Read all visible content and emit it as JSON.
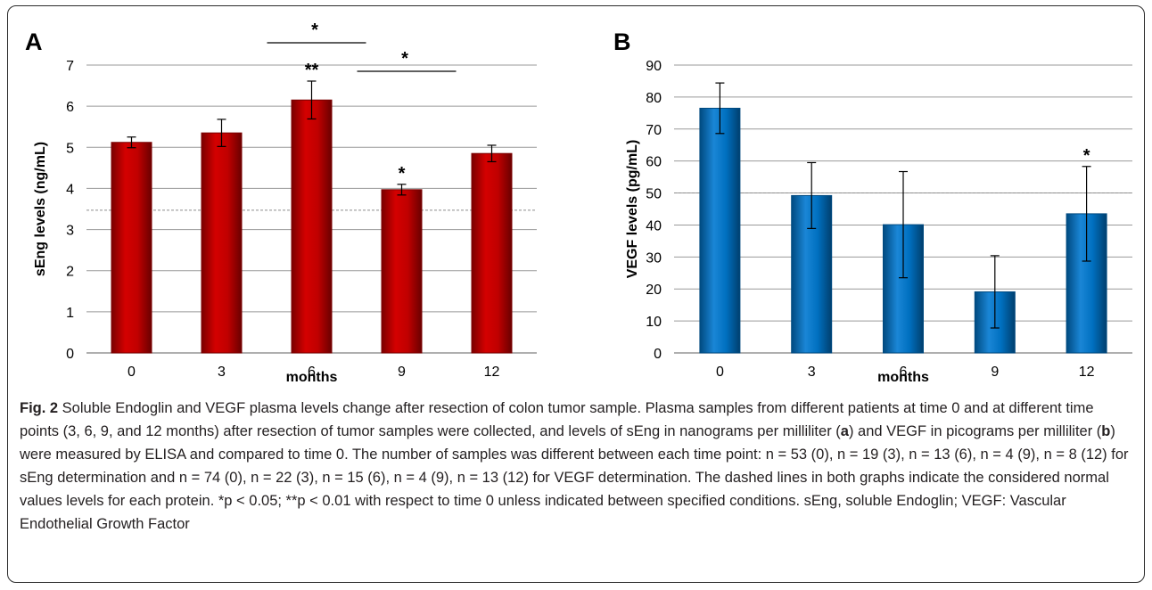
{
  "colors": {
    "red_bar": "#c00000",
    "red_bar_dark": "#7a0000",
    "blue_bar": "#0070c0",
    "blue_bar_dark": "#004a80",
    "grid": "#9a9a9a",
    "normal_line": "#8c8c8c"
  },
  "chart_data": [
    {
      "type": "bar",
      "panel_label": "A",
      "categories": [
        "0",
        "3",
        "6",
        "9",
        "12"
      ],
      "values": [
        5.12,
        5.35,
        6.15,
        3.97,
        4.85
      ],
      "error": [
        0.13,
        0.33,
        0.46,
        0.13,
        0.2
      ],
      "xlabel": "months",
      "ylabel": "sEng levels (ng/mL)",
      "ylim": [
        0,
        7
      ],
      "yticks": [
        "0",
        "1",
        "2",
        "3",
        "4",
        "5",
        "6",
        "7"
      ],
      "grid": true,
      "normal_value": 3.47,
      "bar_annotations": [
        {
          "category": "6",
          "text": "**"
        },
        {
          "category": "9",
          "text": "*"
        }
      ],
      "bracket_annotations": [
        {
          "from": "6",
          "to": "9",
          "text": "*"
        },
        {
          "from": "9",
          "to": "12",
          "text": "*"
        }
      ]
    },
    {
      "type": "bar",
      "panel_label": "B",
      "categories": [
        "0",
        "3",
        "6",
        "9",
        "12"
      ],
      "values": [
        76.5,
        49.2,
        40.1,
        19.1,
        43.5
      ],
      "error": [
        7.9,
        10.3,
        16.6,
        11.3,
        14.8
      ],
      "xlabel": "months",
      "ylabel": "VEGF levels (pg/mL)",
      "ylim": [
        0,
        90
      ],
      "yticks": [
        "0",
        "10",
        "20",
        "30",
        "40",
        "50",
        "60",
        "70",
        "80",
        "90"
      ],
      "grid": true,
      "normal_value": 50,
      "bar_annotations": [
        {
          "category": "12",
          "text": "*"
        }
      ],
      "bracket_annotations": []
    }
  ],
  "caption": {
    "fig_label": "Fig. 2",
    "text_1": " Soluble Endoglin and VEGF plasma levels change after resection of colon tumor sample. Plasma samples from different patients at time 0 and at different time points (3, 6, 9, and 12 months) after resection of tumor samples were collected, and levels of sEng in nanograms per milliliter (",
    "a": "a",
    "text_2": ") and VEGF in picograms per milliliter (",
    "b": "b",
    "text_3": ") were measured by ELISA and compared to time 0. The number of samples was different between each time point: ",
    "text_4": "n = 53 (0), n = 19 (3), n = 13 (6), n = 4 (9), n = 8 (12) for sEng determination and n = 74 (0), n = 22 (3), n = 15 (6), n = 4 (9), n = 13 (12) for VEGF determination.",
    "text_5": " The dashed lines in both graphs indicate the considered normal values levels for each protein. *p < 0.05; **p < 0.01 with respect to time 0 unless indicated between specified conditions. sEng, soluble Endoglin; VEGF: Vascular Endothelial Growth Factor"
  }
}
